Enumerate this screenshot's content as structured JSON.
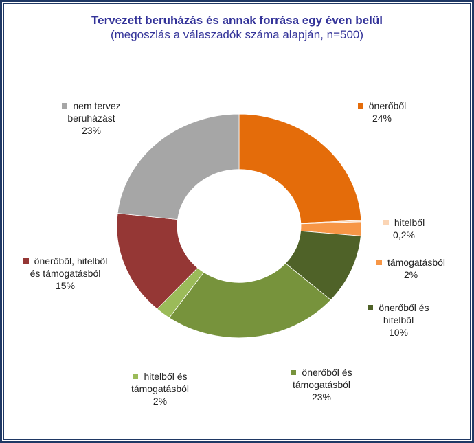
{
  "chart_data": {
    "type": "pie",
    "donut": true,
    "title": "Tervezett beruházás és annak forrása egy éven belül",
    "subtitle": "(megoszlás a válaszadók száma alapján, n=500)",
    "slices": [
      {
        "name": "önerőből",
        "label": "24%",
        "value": 24,
        "color": "#e46c0a"
      },
      {
        "name": "hitelből",
        "label": "0,2%",
        "value": 0.2,
        "color": "#fbd5b5"
      },
      {
        "name": "támogatásból",
        "label": "2%",
        "value": 2,
        "color": "#f79646"
      },
      {
        "name": "önerőből és hitelből",
        "label": "10%",
        "value": 10,
        "color": "#4f6228"
      },
      {
        "name": "önerőből és támogatásból",
        "label": "23%",
        "value": 23,
        "color": "#77933c"
      },
      {
        "name": "hitelből és támogatásból",
        "label": "2%",
        "value": 2,
        "color": "#9bbb59"
      },
      {
        "name": "önerőből, hitelből és támogatásból",
        "label": "15%",
        "value": 15,
        "color": "#953735"
      },
      {
        "name": "nem tervez beruházást",
        "label": "23%",
        "value": 23,
        "color": "#a6a6a6"
      }
    ]
  }
}
